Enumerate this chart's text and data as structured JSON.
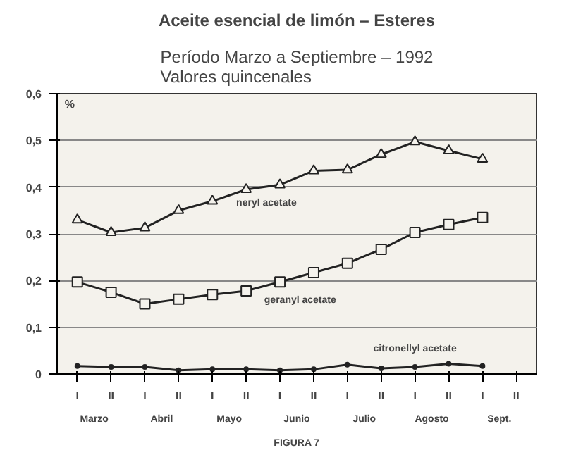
{
  "chart_data": {
    "type": "line",
    "title": "Aceite esencial de limón – Esteres",
    "subtitle": "Período Marzo a Septiembre – 1992\nValores quincenales",
    "ylabel": "%",
    "categories": [
      "I",
      "II",
      "I",
      "II",
      "I",
      "II",
      "I",
      "II",
      "I",
      "II",
      "I",
      "II",
      "I",
      "II"
    ],
    "series": [
      {
        "name": "neryl acetate",
        "color": "#222222",
        "marker": "triangle",
        "values": [
          0.33,
          0.303,
          0.313,
          0.35,
          0.37,
          0.395,
          0.405,
          0.435,
          0.437,
          0.47,
          0.497,
          0.478,
          0.46,
          null
        ]
      },
      {
        "name": "geranyl acetate",
        "color": "#222222",
        "marker": "square",
        "values": [
          0.197,
          0.175,
          0.15,
          0.16,
          0.17,
          0.178,
          0.197,
          0.217,
          0.237,
          0.267,
          0.303,
          0.32,
          0.335,
          null
        ]
      },
      {
        "name": "citronellyl acetate",
        "color": "#222222",
        "marker": "circle",
        "values": [
          0.017,
          0.015,
          0.015,
          0.008,
          0.01,
          0.01,
          0.008,
          0.01,
          0.02,
          0.012,
          0.015,
          0.022,
          0.017,
          null
        ]
      }
    ],
    "annotations": [
      "Marzo",
      "Abril",
      "Mayo",
      "Junio",
      "Julio",
      "Agosto",
      "Sept.",
      "FIGURA 7"
    ],
    "ylim": [
      0,
      0.6
    ],
    "yticks": [
      0,
      {
        "value": 0.1,
        "label": "0,1"
      },
      {
        "value": 0.2,
        "label": "0,2"
      },
      {
        "value": 0.3,
        "label": "0,3"
      },
      {
        "value": 0.4,
        "label": "0,4"
      },
      {
        "value": 0.5,
        "label": "0,5"
      },
      {
        "value": 0.6,
        "label": "0,6"
      }
    ],
    "grid": "y"
  }
}
